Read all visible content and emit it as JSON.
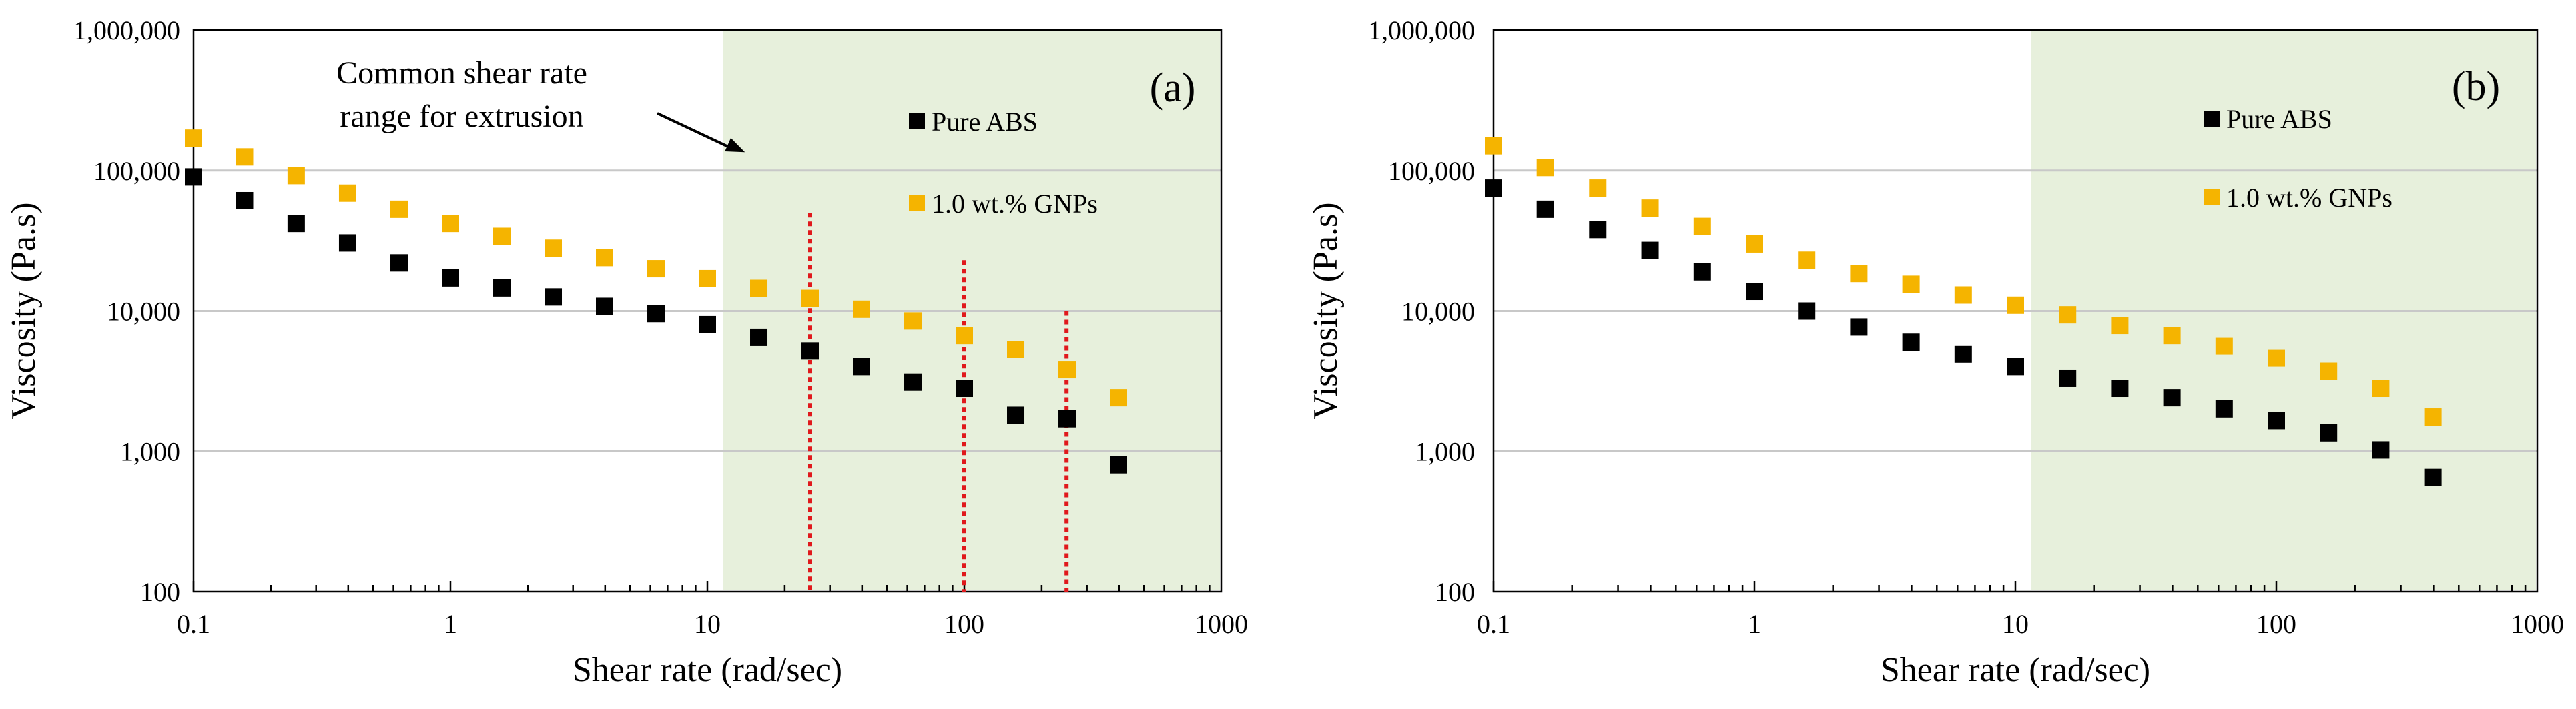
{
  "chart_data": [
    {
      "type": "scatter",
      "panel_label": "(a)",
      "xlabel": "Shear rate (rad/sec)",
      "ylabel": "Viscosity (Pa.s)",
      "xscale": "log",
      "yscale": "log",
      "xlim": [
        0.1,
        1000
      ],
      "ylim": [
        100,
        1000000
      ],
      "x_ticks": [
        0.1,
        1,
        10,
        100,
        1000
      ],
      "x_tick_labels": [
        "0.1",
        "1",
        "10",
        "100",
        "1000"
      ],
      "y_ticks": [
        100,
        1000,
        10000,
        100000,
        1000000
      ],
      "y_tick_labels": [
        "100",
        "1,000",
        "10,000",
        "100,000",
        "1,000,000"
      ],
      "gridlines": "horizontal",
      "shaded_range": {
        "x": [
          11.5,
          1000
        ],
        "color": "#e7f0dc"
      },
      "annotation": {
        "lines": [
          "Common shear rate",
          "range for extrusion"
        ],
        "arrow_to_x": 14,
        "arrow_to_y": 135000
      },
      "reference_lines": {
        "x": [
          25,
          100,
          250
        ],
        "top_values": [
          50000,
          23000,
          10000
        ],
        "color": "#e0191c"
      },
      "legend_position": "upper-center",
      "series": [
        {
          "name": "Pure ABS",
          "color": "#000000",
          "x": [
            0.1,
            0.158,
            0.251,
            0.398,
            0.631,
            1,
            1.585,
            2.512,
            3.981,
            6.31,
            10,
            15.85,
            25.12,
            39.81,
            63.1,
            100,
            158.5,
            251.2,
            398.1
          ],
          "y": [
            90000,
            61000,
            42000,
            30500,
            22000,
            17200,
            14600,
            12600,
            10800,
            9600,
            8000,
            6500,
            5200,
            4000,
            3100,
            2800,
            1800,
            1700,
            800
          ]
        },
        {
          "name": "1.0 wt.% GNPs",
          "color": "#f5b400",
          "x": [
            0.1,
            0.158,
            0.251,
            0.398,
            0.631,
            1,
            1.585,
            2.512,
            3.981,
            6.31,
            10,
            15.85,
            25.12,
            39.81,
            63.1,
            100,
            158.5,
            251.2,
            398.1
          ],
          "y": [
            170000,
            125000,
            92000,
            69000,
            53000,
            42000,
            34000,
            28000,
            24000,
            20000,
            17000,
            14500,
            12300,
            10300,
            8500,
            6700,
            5300,
            3800,
            2400
          ]
        }
      ]
    },
    {
      "type": "scatter",
      "panel_label": "(b)",
      "xlabel": "Shear rate (rad/sec)",
      "ylabel": "Viscosity (Pa.s)",
      "xscale": "log",
      "yscale": "log",
      "xlim": [
        0.1,
        1000
      ],
      "ylim": [
        100,
        1000000
      ],
      "x_ticks": [
        0.1,
        1,
        10,
        100,
        1000
      ],
      "x_tick_labels": [
        "0.1",
        "1",
        "10",
        "100",
        "1000"
      ],
      "y_ticks": [
        100,
        1000,
        10000,
        100000,
        1000000
      ],
      "y_tick_labels": [
        "100",
        "1,000",
        "10,000",
        "100,000",
        "1,000,000"
      ],
      "gridlines": "horizontal",
      "shaded_range": {
        "x": [
          11.5,
          1000
        ],
        "color": "#e7f0dc"
      },
      "legend_position": "upper-center",
      "series": [
        {
          "name": "Pure ABS",
          "color": "#000000",
          "x": [
            0.1,
            0.158,
            0.251,
            0.398,
            0.631,
            1,
            1.585,
            2.512,
            3.981,
            6.31,
            10,
            15.85,
            25.12,
            39.81,
            63.1,
            100,
            158.5,
            251.2,
            398.1
          ],
          "y": [
            75000,
            53000,
            38000,
            27000,
            19000,
            13800,
            10000,
            7700,
            6000,
            4900,
            4000,
            3300,
            2800,
            2400,
            2000,
            1650,
            1350,
            1020,
            650
          ]
        },
        {
          "name": "1.0 wt.% GNPs",
          "color": "#f5b400",
          "x": [
            0.1,
            0.158,
            0.251,
            0.398,
            0.631,
            1,
            1.585,
            2.512,
            3.981,
            6.31,
            10,
            15.85,
            25.12,
            39.81,
            63.1,
            100,
            158.5,
            251.2,
            398.1
          ],
          "y": [
            150000,
            105000,
            75000,
            54000,
            40000,
            30000,
            23000,
            18500,
            15500,
            13000,
            11000,
            9400,
            7900,
            6700,
            5600,
            4600,
            3700,
            2800,
            1750
          ]
        }
      ]
    }
  ]
}
